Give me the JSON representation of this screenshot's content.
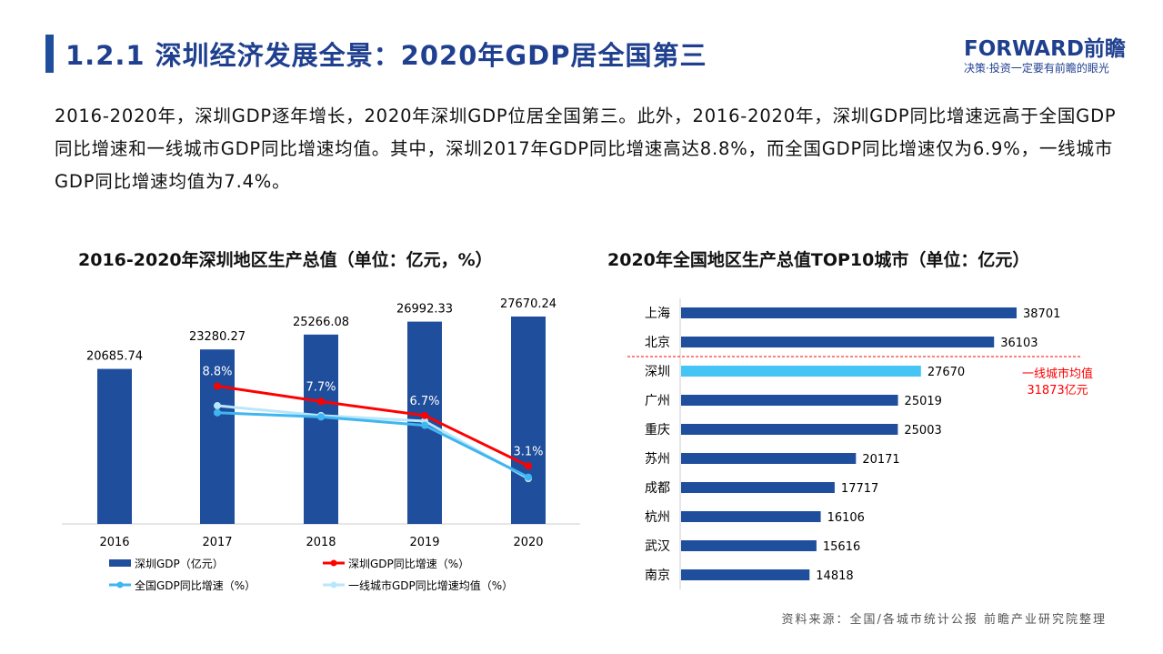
{
  "header": {
    "title": "1.2.1 深圳经济发展全景：2020年GDP居全国第三",
    "logo_text": "FORWARD前瞻",
    "logo_slogan": "决策·投资一定要有前瞻的眼光"
  },
  "paragraph": "2016-2020年，深圳GDP逐年增长，2020年深圳GDP位居全国第三。此外，2016-2020年，深圳GDP同比增速远高于全国GDP同比增速和一线城市GDP同比增速均值。其中，深圳2017年GDP同比增速高达8.8%，而全国GDP同比增速仅为6.9%，一线城市GDP同比增速均值为7.4%。",
  "source": "资料来源：全国/各城市统计公报 前瞻产业研究院整理",
  "chart_data": [
    {
      "type": "bar+line",
      "title": "2016-2020年深圳地区生产总值（单位：亿元，%）",
      "categories": [
        "2016",
        "2017",
        "2018",
        "2019",
        "2020"
      ],
      "series": [
        {
          "name": "深圳GDP（亿元）",
          "type": "bar",
          "color": "#1f4e9c",
          "values": [
            20685.74,
            23280.27,
            25266.08,
            26992.33,
            27670.24
          ],
          "labels": [
            "20685.74",
            "23280.27",
            "25266.08",
            "26992.33",
            "27670.24"
          ]
        },
        {
          "name": "深圳GDP同比增速（%）",
          "type": "line",
          "color": "#ff0000",
          "values": [
            null,
            8.8,
            7.7,
            6.7,
            3.1
          ],
          "labels": [
            "",
            "8.8%",
            "7.7%",
            "6.7%",
            "3.1%"
          ]
        },
        {
          "name": "全国GDP同比增速（%）",
          "type": "line",
          "color": "#3fb6f0",
          "values": [
            null,
            6.9,
            6.6,
            6.0,
            2.3
          ]
        },
        {
          "name": "一线城市GDP同比增速均值（%）",
          "type": "line",
          "color": "#b8e6fa",
          "values": [
            null,
            7.4,
            6.7,
            6.3,
            2.2
          ]
        }
      ],
      "legend": "bottom"
    },
    {
      "type": "bar",
      "orientation": "horizontal",
      "title": "2020年全国地区生产总值TOP10城市（单位：亿元）",
      "categories": [
        "上海",
        "北京",
        "深圳",
        "广州",
        "重庆",
        "苏州",
        "成都",
        "杭州",
        "武汉",
        "南京"
      ],
      "values": [
        38701,
        36103,
        27670,
        25019,
        25003,
        20171,
        17717,
        16106,
        15616,
        14818
      ],
      "color": "#1f4e9c",
      "highlight": {
        "category": "深圳",
        "color": "#45c5f5"
      },
      "annotation": {
        "line1": "一线城市均值",
        "line2": "31873亿元",
        "value": 31873,
        "color": "#ff0000"
      }
    }
  ]
}
